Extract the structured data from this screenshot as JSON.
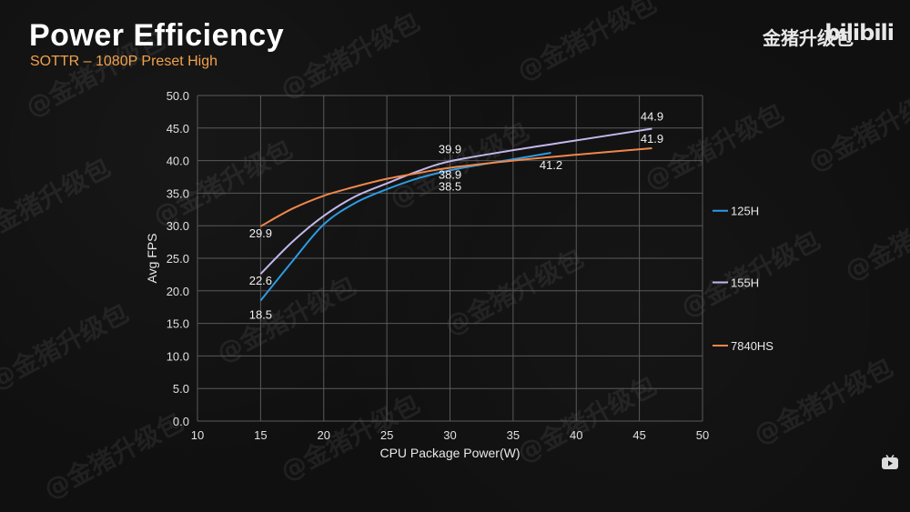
{
  "header": {
    "title": "Power Efficiency",
    "subtitle": "SOTTR – 1080P Preset High",
    "brand": "金猪升级包",
    "platform_logo": "bilibili",
    "watermark": "@金猪升级包"
  },
  "icons": {
    "corner": "tv-icon"
  },
  "chart_data": {
    "type": "line",
    "title": "Power Efficiency",
    "subtitle": "SOTTR – 1080P Preset High",
    "xlabel": "CPU Package Power(W)",
    "ylabel": "Avg FPS",
    "xlim": [
      10,
      50
    ],
    "ylim": [
      0,
      50
    ],
    "xticks": [
      10,
      15,
      20,
      25,
      30,
      35,
      40,
      45,
      50
    ],
    "yticks": [
      0,
      5,
      10,
      15,
      20,
      25,
      30,
      35,
      40,
      45,
      50
    ],
    "ytick_labels": [
      "0.0",
      "5.0",
      "10.0",
      "15.0",
      "20.0",
      "25.0",
      "30.0",
      "35.0",
      "40.0",
      "45.0",
      "50.0"
    ],
    "grid": true,
    "legend_position": "right",
    "series": [
      {
        "name": "125H",
        "color": "#2e9be0",
        "x": [
          15,
          17.5,
          20,
          22.5,
          25,
          27.5,
          30,
          32.5,
          35,
          38
        ],
        "y": [
          18.5,
          24.5,
          30.2,
          33.5,
          35.6,
          37.3,
          38.5,
          39.4,
          40.2,
          41.2
        ],
        "labels": [
          {
            "x": 15,
            "y": 18.5,
            "text": "18.5"
          },
          {
            "x": 30,
            "y": 38.5,
            "text": "38.5"
          },
          {
            "x": 38,
            "y": 41.2,
            "text": "41.2"
          }
        ]
      },
      {
        "name": "155H",
        "color": "#c3b8ec",
        "x": [
          15,
          17.5,
          20,
          22.5,
          25,
          27.5,
          30,
          35,
          40,
          46
        ],
        "y": [
          22.6,
          27.5,
          31.5,
          34.5,
          36.5,
          38.4,
          39.9,
          41.6,
          43.1,
          44.9
        ],
        "labels": [
          {
            "x": 15,
            "y": 22.6,
            "text": "22.6"
          },
          {
            "x": 30,
            "y": 39.9,
            "text": "39.9"
          },
          {
            "x": 46,
            "y": 44.9,
            "text": "44.9"
          }
        ]
      },
      {
        "name": "7840HS",
        "color": "#f0874c",
        "x": [
          15,
          17.5,
          20,
          22.5,
          25,
          27.5,
          30,
          35,
          40,
          46
        ],
        "y": [
          29.9,
          32.6,
          34.6,
          36.0,
          37.2,
          38.1,
          38.9,
          40.0,
          40.9,
          41.9
        ],
        "labels": [
          {
            "x": 15,
            "y": 29.9,
            "text": "29.9"
          },
          {
            "x": 30,
            "y": 38.9,
            "text": "38.9"
          },
          {
            "x": 46,
            "y": 41.9,
            "text": "41.9"
          }
        ]
      }
    ]
  }
}
